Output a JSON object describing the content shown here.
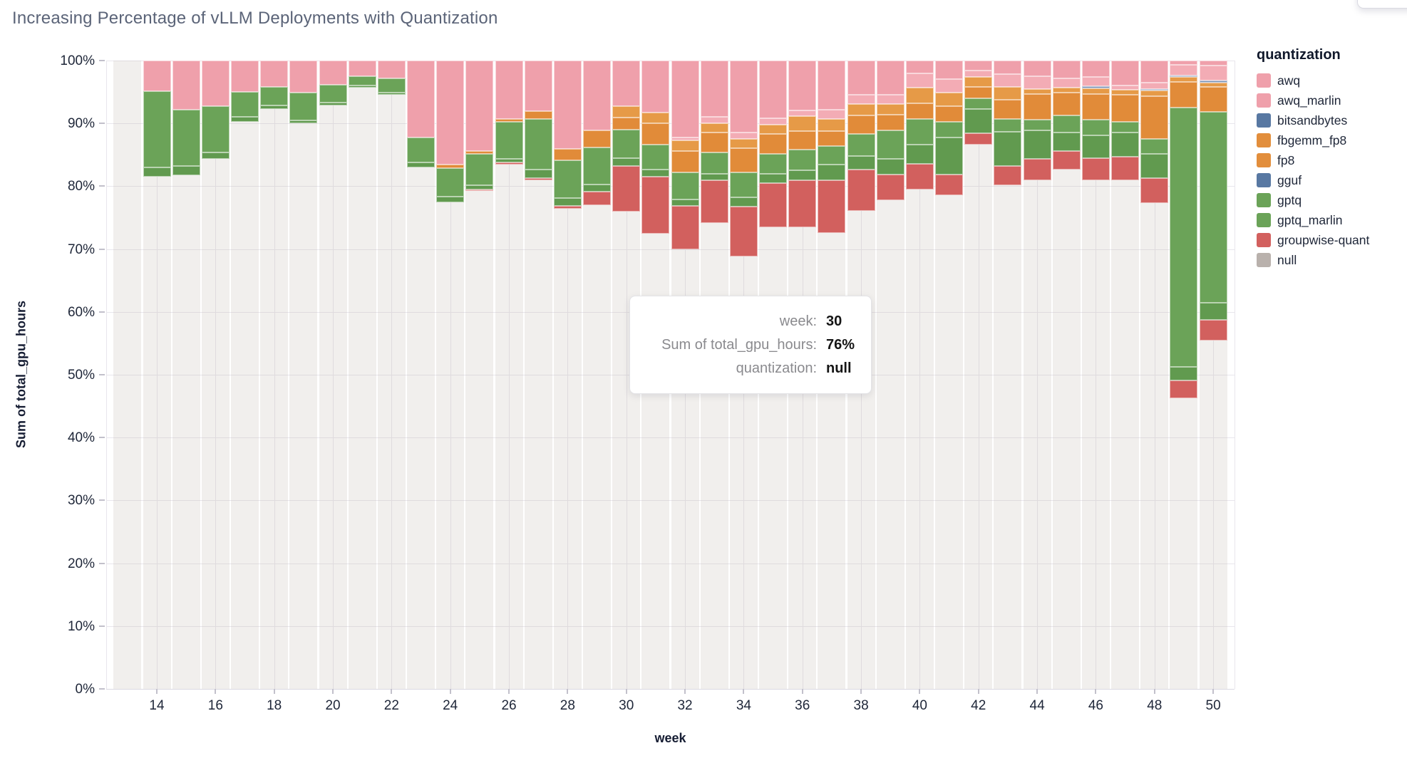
{
  "title": "Increasing Percentage of vLLM Deployments with Quantization",
  "tooltip": {
    "rows": [
      {
        "label": "week:",
        "value": "30"
      },
      {
        "label": "Sum of total_gpu_hours:",
        "value": "76%"
      },
      {
        "label": "quantization:",
        "value": "null"
      }
    ]
  },
  "legend": {
    "title": "quantization",
    "items": [
      {
        "label": "awq",
        "color": "#efa0ab"
      },
      {
        "label": "awq_marlin",
        "color": "#efa0ab"
      },
      {
        "label": "bitsandbytes",
        "color": "#5878a2"
      },
      {
        "label": "fbgemm_fp8",
        "color": "#e28e3c"
      },
      {
        "label": "fp8",
        "color": "#e28e3c"
      },
      {
        "label": "gguf",
        "color": "#5878a2"
      },
      {
        "label": "gptq",
        "color": "#6ba358"
      },
      {
        "label": "gptq_marlin",
        "color": "#6ba358"
      },
      {
        "label": "groupwise-quant",
        "color": "#d2605e"
      },
      {
        "label": "null",
        "color": "#b9b1ac"
      }
    ]
  },
  "chart_data": {
    "type": "bar",
    "stacked": true,
    "normalized": "percent",
    "title": "Increasing Percentage of vLLM Deployments with Quantization",
    "xlabel": "week",
    "ylabel": "Sum of total_gpu_hours",
    "ylim": [
      0,
      100
    ],
    "y_ticks": [
      "0%",
      "10%",
      "20%",
      "30%",
      "40%",
      "50%",
      "60%",
      "70%",
      "80%",
      "90%",
      "100%"
    ],
    "x_ticks": [
      14,
      16,
      18,
      20,
      22,
      24,
      26,
      28,
      30,
      32,
      34,
      36,
      38,
      40,
      42,
      44,
      46,
      48,
      50
    ],
    "grid": true,
    "legend_position": "right",
    "series_order": [
      "awq",
      "awq_marlin",
      "bitsandbytes",
      "fbgemm_fp8",
      "fp8",
      "gguf",
      "gptq",
      "gptq_marlin",
      "groupwise-quant",
      "null"
    ],
    "colors": {
      "awq": "#efa0ab",
      "awq_marlin": "#f3acb5",
      "bitsandbytes": "#7c93b5",
      "fbgemm_fp8": "#e69a47",
      "fp8": "#e18b39",
      "gguf": "#5878a2",
      "gptq": "#6ba358",
      "gptq_marlin": "#619a4f",
      "groupwise-quant": "#d2605e",
      "null": "rgba(189,180,172,0.22)"
    },
    "bars": [
      {
        "week": 13,
        "awq": 0,
        "awq_marlin": 0,
        "bitsandbytes": 0,
        "fbgemm_fp8": 0,
        "fp8": 0,
        "gguf": 0,
        "gptq": 0,
        "gptq_marlin": 0,
        "groupwise-quant": 0,
        "null": 100
      },
      {
        "week": 14,
        "awq": 4.9,
        "awq_marlin": 0,
        "bitsandbytes": 0,
        "fbgemm_fp8": 0,
        "fp8": 0,
        "gguf": 0,
        "gptq": 12.1,
        "gptq_marlin": 1.5,
        "groupwise-quant": 0,
        "null": 81.5
      },
      {
        "week": 15,
        "awq": 7.8,
        "awq_marlin": 0,
        "bitsandbytes": 0,
        "fbgemm_fp8": 0,
        "fp8": 0,
        "gguf": 0,
        "gptq": 9.0,
        "gptq_marlin": 1.5,
        "groupwise-quant": 0,
        "null": 81.7
      },
      {
        "week": 16,
        "awq": 7.2,
        "awq_marlin": 0,
        "bitsandbytes": 0,
        "fbgemm_fp8": 0,
        "fp8": 0,
        "gguf": 0,
        "gptq": 7.4,
        "gptq_marlin": 1.0,
        "groupwise-quant": 0,
        "null": 84.4
      },
      {
        "week": 17,
        "awq": 5.0,
        "awq_marlin": 0,
        "bitsandbytes": 0,
        "fbgemm_fp8": 0,
        "fp8": 0,
        "gguf": 0,
        "gptq": 4.0,
        "gptq_marlin": 0.7,
        "groupwise-quant": 0,
        "null": 90.3
      },
      {
        "week": 18,
        "awq": 4.2,
        "awq_marlin": 0,
        "bitsandbytes": 0,
        "fbgemm_fp8": 0,
        "fp8": 0,
        "gguf": 0,
        "gptq": 3.0,
        "gptq_marlin": 0.5,
        "groupwise-quant": 0,
        "null": 92.3
      },
      {
        "week": 19,
        "awq": 5.1,
        "awq_marlin": 0,
        "bitsandbytes": 0,
        "fbgemm_fp8": 0,
        "fp8": 0,
        "gguf": 0,
        "gptq": 4.4,
        "gptq_marlin": 0.5,
        "groupwise-quant": 0,
        "null": 90.0
      },
      {
        "week": 20,
        "awq": 3.9,
        "awq_marlin": 0,
        "bitsandbytes": 0,
        "fbgemm_fp8": 0,
        "fp8": 0,
        "gguf": 0,
        "gptq": 2.8,
        "gptq_marlin": 0.5,
        "groupwise-quant": 0,
        "null": 92.8
      },
      {
        "week": 21,
        "awq": 2.5,
        "awq_marlin": 0,
        "bitsandbytes": 0,
        "fbgemm_fp8": 0,
        "fp8": 0,
        "gguf": 0,
        "gptq": 1.5,
        "gptq_marlin": 0.3,
        "groupwise-quant": 0,
        "null": 95.7
      },
      {
        "week": 22,
        "awq": 2.8,
        "awq_marlin": 0,
        "bitsandbytes": 0,
        "fbgemm_fp8": 0,
        "fp8": 0,
        "gguf": 0,
        "gptq": 2.3,
        "gptq_marlin": 0.3,
        "groupwise-quant": 0,
        "null": 94.6
      },
      {
        "week": 23,
        "awq": 12.2,
        "awq_marlin": 0,
        "bitsandbytes": 0,
        "fbgemm_fp8": 0,
        "fp8": 0,
        "gguf": 0,
        "gptq": 4.0,
        "gptq_marlin": 0.8,
        "groupwise-quant": 0,
        "null": 83.0
      },
      {
        "week": 24,
        "awq": 16.6,
        "awq_marlin": 0,
        "bitsandbytes": 0,
        "fbgemm_fp8": 0,
        "fp8": 0.5,
        "gguf": 0,
        "gptq": 4.5,
        "gptq_marlin": 1.0,
        "groupwise-quant": 0,
        "null": 77.4
      },
      {
        "week": 25,
        "awq": 14.4,
        "awq_marlin": 0,
        "bitsandbytes": 0,
        "fbgemm_fp8": 0,
        "fp8": 0.4,
        "gguf": 0,
        "gptq": 5.0,
        "gptq_marlin": 0.7,
        "groupwise-quant": 0.3,
        "null": 79.2
      },
      {
        "week": 26,
        "awq": 9.3,
        "awq_marlin": 0,
        "bitsandbytes": 0,
        "fbgemm_fp8": 0,
        "fp8": 0.5,
        "gguf": 0,
        "gptq": 5.8,
        "gptq_marlin": 0.6,
        "groupwise-quant": 0.4,
        "null": 83.4
      },
      {
        "week": 27,
        "awq": 8.1,
        "awq_marlin": 0,
        "bitsandbytes": 0,
        "fbgemm_fp8": 0,
        "fp8": 1.2,
        "gguf": 0,
        "gptq": 8.0,
        "gptq_marlin": 1.4,
        "groupwise-quant": 0.4,
        "null": 80.9
      },
      {
        "week": 28,
        "awq": 14.1,
        "awq_marlin": 0,
        "bitsandbytes": 0,
        "fbgemm_fp8": 0,
        "fp8": 1.8,
        "gguf": 0,
        "gptq": 6.0,
        "gptq_marlin": 1.2,
        "groupwise-quant": 0.5,
        "null": 76.4
      },
      {
        "week": 29,
        "awq": 11.1,
        "awq_marlin": 0,
        "bitsandbytes": 0,
        "fbgemm_fp8": 0,
        "fp8": 2.7,
        "gguf": 0,
        "gptq": 5.9,
        "gptq_marlin": 1.2,
        "groupwise-quant": 2.1,
        "null": 77.0
      },
      {
        "week": 30,
        "awq": 7.2,
        "awq_marlin": 0,
        "bitsandbytes": 0,
        "fbgemm_fp8": 1.9,
        "fp8": 1.9,
        "gguf": 0,
        "gptq": 4.5,
        "gptq_marlin": 1.3,
        "groupwise-quant": 7.2,
        "null": 76.0
      },
      {
        "week": 31,
        "awq": 8.3,
        "awq_marlin": 0,
        "bitsandbytes": 0,
        "fbgemm_fp8": 1.7,
        "fp8": 3.4,
        "gguf": 0,
        "gptq": 3.9,
        "gptq_marlin": 1.2,
        "groupwise-quant": 9.0,
        "null": 72.5
      },
      {
        "week": 32,
        "awq": 12.2,
        "awq_marlin": 0.5,
        "bitsandbytes": 0,
        "fbgemm_fp8": 1.7,
        "fp8": 3.4,
        "gguf": 0,
        "gptq": 4.3,
        "gptq_marlin": 1.0,
        "groupwise-quant": 6.9,
        "null": 70.0
      },
      {
        "week": 33,
        "awq": 9.0,
        "awq_marlin": 1.0,
        "bitsandbytes": 0,
        "fbgemm_fp8": 1.5,
        "fp8": 3.1,
        "gguf": 0,
        "gptq": 3.4,
        "gptq_marlin": 1.0,
        "groupwise-quant": 6.8,
        "null": 74.2
      },
      {
        "week": 34,
        "awq": 11.5,
        "awq_marlin": 1.0,
        "bitsandbytes": 0,
        "fbgemm_fp8": 1.5,
        "fp8": 3.8,
        "gguf": 0,
        "gptq": 4.0,
        "gptq_marlin": 1.5,
        "groupwise-quant": 7.9,
        "null": 68.8
      },
      {
        "week": 35,
        "awq": 9.2,
        "awq_marlin": 1.0,
        "bitsandbytes": 0,
        "fbgemm_fp8": 1.5,
        "fp8": 3.1,
        "gguf": 0,
        "gptq": 3.2,
        "gptq_marlin": 1.5,
        "groupwise-quant": 7.0,
        "null": 73.5
      },
      {
        "week": 36,
        "awq": 7.9,
        "awq_marlin": 1.0,
        "bitsandbytes": 0,
        "fbgemm_fp8": 2.3,
        "fp8": 3.0,
        "gguf": 0,
        "gptq": 3.3,
        "gptq_marlin": 1.6,
        "groupwise-quant": 7.4,
        "null": 73.5
      },
      {
        "week": 37,
        "awq": 7.8,
        "awq_marlin": 1.5,
        "bitsandbytes": 0,
        "fbgemm_fp8": 1.9,
        "fp8": 2.4,
        "gguf": 0,
        "gptq": 3.0,
        "gptq_marlin": 2.5,
        "groupwise-quant": 8.4,
        "null": 72.5
      },
      {
        "week": 38,
        "awq": 5.4,
        "awq_marlin": 1.5,
        "bitsandbytes": 0,
        "fbgemm_fp8": 1.8,
        "fp8": 3.0,
        "gguf": 0,
        "gptq": 3.5,
        "gptq_marlin": 2.2,
        "groupwise-quant": 6.5,
        "null": 76.1
      },
      {
        "week": 39,
        "awq": 5.4,
        "awq_marlin": 1.5,
        "bitsandbytes": 0,
        "fbgemm_fp8": 1.7,
        "fp8": 2.5,
        "gguf": 0,
        "gptq": 4.5,
        "gptq_marlin": 2.6,
        "groupwise-quant": 4.0,
        "null": 77.8
      },
      {
        "week": 40,
        "awq": 2.0,
        "awq_marlin": 2.3,
        "bitsandbytes": 0,
        "fbgemm_fp8": 2.5,
        "fp8": 2.5,
        "gguf": 0,
        "gptq": 4.1,
        "gptq_marlin": 3.1,
        "groupwise-quant": 4.0,
        "null": 79.5
      },
      {
        "week": 41,
        "awq": 2.9,
        "awq_marlin": 2.2,
        "bitsandbytes": 0,
        "fbgemm_fp8": 2.2,
        "fp8": 2.4,
        "gguf": 0,
        "gptq": 2.6,
        "gptq_marlin": 5.9,
        "groupwise-quant": 3.2,
        "null": 78.6
      },
      {
        "week": 42,
        "awq": 1.6,
        "awq_marlin": 1.0,
        "bitsandbytes": 0,
        "fbgemm_fp8": 1.6,
        "fp8": 1.8,
        "gguf": 0,
        "gptq": 1.7,
        "gptq_marlin": 3.9,
        "groupwise-quant": 1.8,
        "null": 86.6
      },
      {
        "week": 43,
        "awq": 2.1,
        "awq_marlin": 2.1,
        "bitsandbytes": 0,
        "fbgemm_fp8": 2.0,
        "fp8": 3.1,
        "gguf": 0,
        "gptq": 2.0,
        "gptq_marlin": 5.5,
        "groupwise-quant": 3.1,
        "null": 80.1
      },
      {
        "week": 44,
        "awq": 2.5,
        "awq_marlin": 2.0,
        "bitsandbytes": 0,
        "fbgemm_fp8": 0.8,
        "fp8": 4.1,
        "gguf": 0,
        "gptq": 1.7,
        "gptq_marlin": 4.5,
        "groupwise-quant": 3.4,
        "null": 81.0
      },
      {
        "week": 45,
        "awq": 2.8,
        "awq_marlin": 1.5,
        "bitsandbytes": 0,
        "fbgemm_fp8": 0.8,
        "fp8": 3.6,
        "gguf": 0,
        "gptq": 2.7,
        "gptq_marlin": 3.0,
        "groupwise-quant": 3.0,
        "null": 82.6
      },
      {
        "week": 46,
        "awq": 2.6,
        "awq_marlin": 1.5,
        "bitsandbytes": 0.3,
        "fbgemm_fp8": 0.9,
        "fp8": 4.1,
        "gguf": 0,
        "gptq": 2.5,
        "gptq_marlin": 3.6,
        "groupwise-quant": 3.6,
        "null": 80.9
      },
      {
        "week": 47,
        "awq": 4.0,
        "awq_marlin": 0.7,
        "bitsandbytes": 0,
        "fbgemm_fp8": 0.8,
        "fp8": 4.2,
        "gguf": 0,
        "gptq": 1.7,
        "gptq_marlin": 3.9,
        "groupwise-quant": 3.7,
        "null": 81.0
      },
      {
        "week": 48,
        "awq": 3.5,
        "awq_marlin": 1.0,
        "bitsandbytes": 0.2,
        "fbgemm_fp8": 0.9,
        "fp8": 6.9,
        "gguf": 0,
        "gptq": 2.3,
        "gptq_marlin": 3.9,
        "groupwise-quant": 4.0,
        "null": 77.3
      },
      {
        "week": 49,
        "awq": 0.7,
        "awq_marlin": 1.7,
        "bitsandbytes": 0.2,
        "fbgemm_fp8": 0.8,
        "fp8": 4.1,
        "gguf": 0,
        "gptq": 41.2,
        "gptq_marlin": 2.2,
        "groupwise-quant": 2.8,
        "null": 46.3
      },
      {
        "week": 50,
        "awq": 0.8,
        "awq_marlin": 2.4,
        "bitsandbytes": 0.3,
        "fbgemm_fp8": 0.7,
        "fp8": 4.0,
        "gguf": 0,
        "gptq": 30.4,
        "gptq_marlin": 2.7,
        "groupwise-quant": 3.3,
        "null": 55.4
      }
    ]
  }
}
